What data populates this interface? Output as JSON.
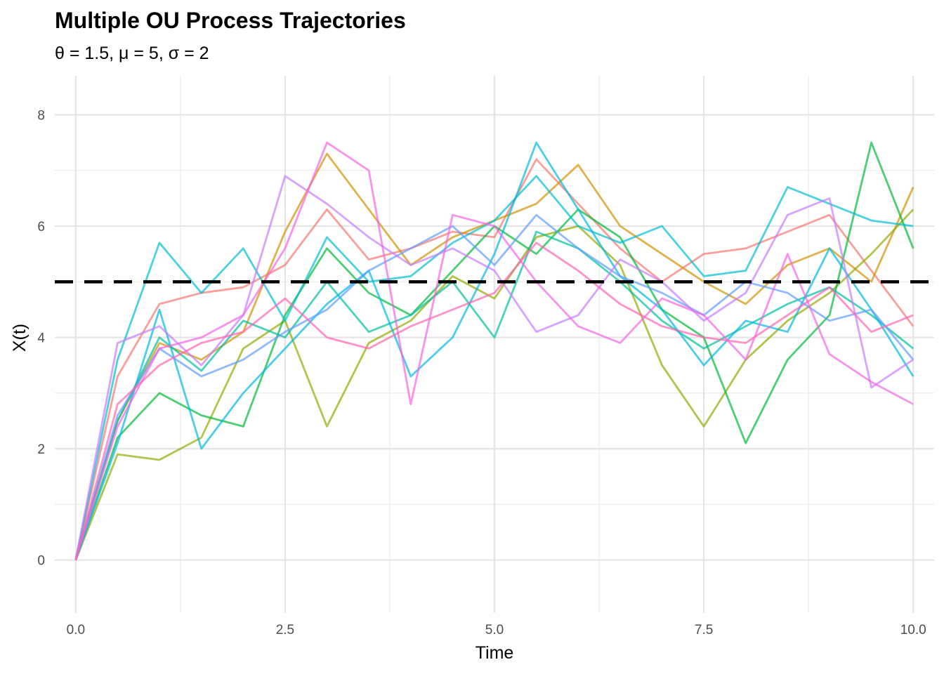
{
  "chart_data": {
    "type": "line",
    "title": "Multiple OU Process Trajectories",
    "subtitle": "θ = 1.5, μ = 5, σ = 2",
    "xlabel": "Time",
    "ylabel": "X(t)",
    "xlim": [
      -0.25,
      10.25
    ],
    "ylim": [
      -0.95,
      8.7
    ],
    "x_ticks": [
      0,
      2.5,
      5,
      7.5,
      10
    ],
    "x_tick_labels": [
      "0.0",
      "2.5",
      "5.0",
      "7.5",
      "10.0"
    ],
    "y_ticks": [
      0,
      2,
      4,
      6,
      8
    ],
    "y_tick_labels": [
      "0",
      "2",
      "4",
      "6",
      "8"
    ],
    "x_minor_ticks": [
      1.25,
      3.75,
      6.25,
      8.75
    ],
    "y_minor_ticks": [
      1,
      3,
      5,
      7
    ],
    "grid": true,
    "legend": "none",
    "reference_line": {
      "y": 5,
      "style": "dashed",
      "color": "#000000"
    },
    "series": [
      {
        "color": "#F8766D",
        "x": [
          0,
          0.5,
          1,
          1.5,
          2,
          2.5,
          3,
          3.5,
          4,
          4.5,
          5,
          5.5,
          6,
          6.5,
          7,
          7.5,
          8,
          8.5,
          9,
          9.5,
          10
        ],
        "values": [
          0,
          3.3,
          4.6,
          4.8,
          4.9,
          5.3,
          6.3,
          5.4,
          5.6,
          5.9,
          5.8,
          7.2,
          6.4,
          5.6,
          5.0,
          5.5,
          5.6,
          5.9,
          6.2,
          5.2,
          4.2
        ]
      },
      {
        "color": "#D39200",
        "x": [
          0,
          0.5,
          1,
          1.5,
          2,
          2.5,
          3,
          3.5,
          4,
          4.5,
          5,
          5.5,
          6,
          6.5,
          7,
          7.5,
          8,
          8.5,
          9,
          9.5,
          10
        ],
        "values": [
          0,
          2.5,
          3.9,
          3.6,
          4.1,
          5.9,
          7.3,
          6.3,
          5.3,
          5.8,
          6.1,
          6.4,
          7.1,
          6.0,
          5.5,
          5.0,
          4.6,
          5.3,
          5.6,
          5.0,
          6.7
        ]
      },
      {
        "color": "#93AA00",
        "x": [
          0,
          0.5,
          1,
          1.5,
          2,
          2.5,
          3,
          3.5,
          4,
          4.5,
          5,
          5.5,
          6,
          6.5,
          7,
          7.5,
          8,
          8.5,
          9,
          9.5,
          10
        ],
        "values": [
          0,
          1.9,
          1.8,
          2.2,
          3.8,
          4.3,
          2.4,
          3.9,
          4.3,
          5.1,
          4.7,
          5.8,
          6.0,
          5.3,
          3.5,
          2.4,
          3.6,
          4.3,
          4.8,
          5.5,
          6.3
        ]
      },
      {
        "color": "#00BA38",
        "x": [
          0,
          0.5,
          1,
          1.5,
          2,
          2.5,
          3,
          3.5,
          4,
          4.5,
          5,
          5.5,
          6,
          6.5,
          7,
          7.5,
          8,
          8.5,
          9,
          9.5,
          10
        ],
        "values": [
          0,
          2.2,
          3.0,
          2.6,
          2.4,
          4.4,
          5.6,
          4.8,
          4.4,
          5.2,
          6.0,
          5.5,
          6.3,
          5.8,
          4.5,
          4.0,
          2.1,
          3.6,
          4.4,
          7.5,
          5.6
        ]
      },
      {
        "color": "#00C19F",
        "x": [
          0,
          0.5,
          1,
          1.5,
          2,
          2.5,
          3,
          3.5,
          4,
          4.5,
          5,
          5.5,
          6,
          6.5,
          7,
          7.5,
          8,
          8.5,
          9,
          9.5,
          10
        ],
        "values": [
          0,
          2.5,
          4.0,
          3.4,
          4.3,
          4.0,
          5.0,
          4.1,
          4.4,
          5.0,
          4.0,
          5.9,
          5.6,
          5.0,
          4.3,
          3.8,
          4.2,
          4.6,
          4.9,
          4.4,
          3.8
        ]
      },
      {
        "color": "#00B9E3",
        "x": [
          0,
          0.5,
          1,
          1.5,
          2,
          2.5,
          3,
          3.5,
          4,
          4.5,
          5,
          5.5,
          6,
          6.5,
          7,
          7.5,
          8,
          8.5,
          9,
          9.5,
          10
        ],
        "values": [
          0,
          2.1,
          4.5,
          2.0,
          3.0,
          3.8,
          4.6,
          5.2,
          3.3,
          4.0,
          5.5,
          7.5,
          6.3,
          5.1,
          4.5,
          3.5,
          4.3,
          4.1,
          5.6,
          4.5,
          3.3
        ]
      },
      {
        "color": "#00BDD0",
        "x": [
          0,
          0.5,
          1,
          1.5,
          2,
          2.5,
          3,
          3.5,
          4,
          4.5,
          5,
          5.5,
          6,
          6.5,
          7,
          7.5,
          8,
          8.5,
          9,
          9.5,
          10
        ],
        "values": [
          0,
          3.6,
          5.7,
          4.8,
          5.6,
          4.3,
          5.8,
          5.0,
          5.1,
          5.7,
          6.1,
          6.9,
          6.0,
          5.7,
          6.0,
          5.1,
          5.2,
          6.7,
          6.4,
          6.1,
          6.0
        ]
      },
      {
        "color": "#619CFF",
        "x": [
          0,
          0.5,
          1,
          1.5,
          2,
          2.5,
          3,
          3.5,
          4,
          4.5,
          5,
          5.5,
          6,
          6.5,
          7,
          7.5,
          8,
          8.5,
          9,
          9.5,
          10
        ],
        "values": [
          0,
          2.6,
          3.8,
          3.3,
          3.6,
          4.1,
          4.5,
          5.2,
          5.6,
          6.0,
          5.3,
          6.2,
          5.6,
          5.1,
          4.8,
          4.4,
          5.0,
          4.8,
          4.3,
          4.5,
          3.6
        ]
      },
      {
        "color": "#C77CFF",
        "x": [
          0,
          0.5,
          1,
          1.5,
          2,
          2.5,
          3,
          3.5,
          4,
          4.5,
          5,
          5.5,
          6,
          6.5,
          7,
          7.5,
          8,
          8.5,
          9,
          9.5,
          10
        ],
        "values": [
          0,
          3.9,
          4.2,
          3.5,
          4.4,
          6.9,
          6.4,
          5.8,
          5.3,
          5.6,
          5.2,
          4.1,
          4.4,
          5.4,
          5.0,
          4.3,
          4.8,
          6.2,
          6.5,
          3.1,
          3.6
        ]
      },
      {
        "color": "#F564E3",
        "x": [
          0,
          0.5,
          1,
          1.5,
          2,
          2.5,
          3,
          3.5,
          4,
          4.5,
          5,
          5.5,
          6,
          6.5,
          7,
          7.5,
          8,
          8.5,
          9,
          9.5,
          10
        ],
        "values": [
          0,
          2.4,
          3.8,
          4.0,
          4.4,
          5.6,
          7.5,
          7.0,
          2.8,
          6.2,
          6.0,
          5.0,
          4.2,
          3.9,
          4.7,
          4.4,
          3.6,
          5.5,
          3.7,
          3.2,
          2.8
        ]
      },
      {
        "color": "#FF64B0",
        "x": [
          0,
          0.5,
          1,
          1.5,
          2,
          2.5,
          3,
          3.5,
          4,
          4.5,
          5,
          5.5,
          6,
          6.5,
          7,
          7.5,
          8,
          8.5,
          9,
          9.5,
          10
        ],
        "values": [
          0,
          2.8,
          3.5,
          3.9,
          4.1,
          4.7,
          4.0,
          3.8,
          4.2,
          4.5,
          4.8,
          5.7,
          5.2,
          4.6,
          4.2,
          4.0,
          3.9,
          4.4,
          4.9,
          4.1,
          4.4
        ]
      }
    ]
  }
}
